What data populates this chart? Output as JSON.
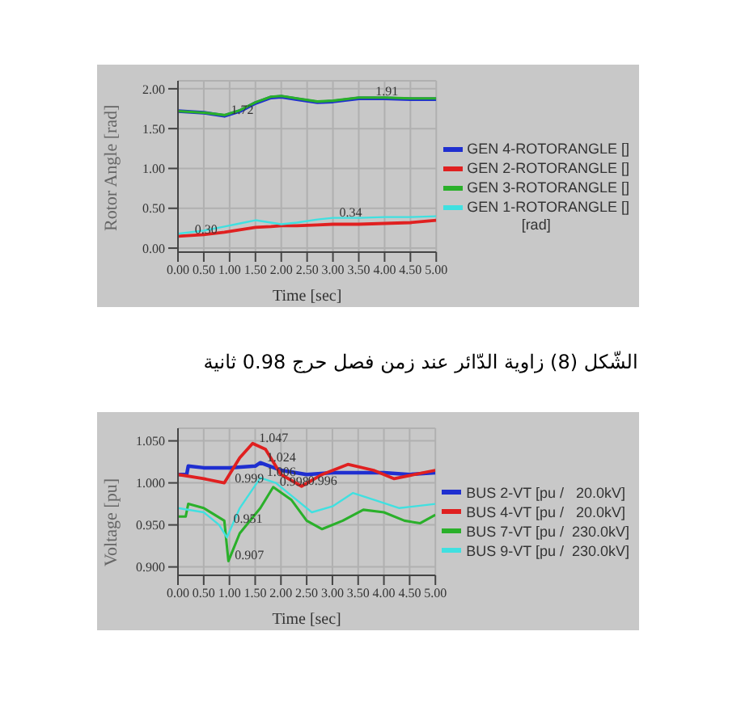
{
  "chart_data": [
    {
      "type": "line",
      "xlabel": "Time [sec]",
      "ylabel": "Rotor Angle [rad]",
      "legend_title": "[rad]",
      "legend": "right",
      "grid": true,
      "xlim": [
        0,
        5
      ],
      "xticks": [
        {
          "value": 0,
          "label": "0.00"
        },
        {
          "value": 0.5,
          "label": "0.50"
        },
        {
          "value": 1,
          "label": "1.00"
        },
        {
          "value": 1.5,
          "label": "1.50"
        },
        {
          "value": 2,
          "label": "2.00"
        },
        {
          "value": 2.5,
          "label": "2.50"
        },
        {
          "value": 3,
          "label": "3.00"
        },
        {
          "value": 3.5,
          "label": "3.50"
        },
        {
          "value": 4,
          "label": "4.00"
        },
        {
          "value": 4.5,
          "label": "4.50"
        },
        {
          "value": 5,
          "label": "5.00"
        }
      ],
      "ylim": [
        -0.05,
        2.1
      ],
      "yticks": [
        {
          "value": 0,
          "label": "0.00"
        },
        {
          "value": 0.5,
          "label": "0.50"
        },
        {
          "value": 1,
          "label": "1.00"
        },
        {
          "value": 1.5,
          "label": "1.50"
        },
        {
          "value": 2,
          "label": "2.00"
        }
      ],
      "x": [
        0,
        0.5,
        0.9,
        1.2,
        1.5,
        1.8,
        2.0,
        2.3,
        2.7,
        3.0,
        3.5,
        4.0,
        4.5,
        5.0
      ],
      "series": [
        {
          "name": "GEN 4-ROTORANGLE []",
          "color": "#1f2fd0",
          "values": [
            1.72,
            1.7,
            1.66,
            1.72,
            1.82,
            1.89,
            1.9,
            1.87,
            1.83,
            1.84,
            1.88,
            1.88,
            1.87,
            1.87
          ]
        },
        {
          "name": "GEN 2-ROTORANGLE []",
          "color": "#e02020",
          "values": [
            0.15,
            0.17,
            0.2,
            0.23,
            0.26,
            0.27,
            0.28,
            0.28,
            0.29,
            0.3,
            0.3,
            0.31,
            0.32,
            0.35
          ]
        },
        {
          "name": "GEN 3-ROTORANGLE []",
          "color": "#2ab02a",
          "values": [
            1.72,
            1.7,
            1.67,
            1.73,
            1.83,
            1.9,
            1.91,
            1.88,
            1.84,
            1.85,
            1.89,
            1.89,
            1.88,
            1.88
          ]
        },
        {
          "name": "GEN 1-ROTORANGLE []",
          "color": "#40e0e0",
          "values": [
            0.18,
            0.22,
            0.27,
            0.31,
            0.35,
            0.32,
            0.3,
            0.32,
            0.36,
            0.38,
            0.38,
            0.39,
            0.39,
            0.4
          ]
        }
      ],
      "annotations": [
        {
          "text": "1.72",
          "x": 0.9,
          "y": 1.66
        },
        {
          "text": "1.91",
          "x": 3.7,
          "y": 1.9
        },
        {
          "text": "0.30",
          "x": 0.2,
          "y": 0.16
        },
        {
          "text": "0.34",
          "x": 3.0,
          "y": 0.38
        },
        "الشّكل (8)  زاوية الدّائر عند زمن فصل حرج 0.98 ثانية"
      ]
    },
    {
      "type": "line",
      "xlabel": "Time [sec]",
      "ylabel": "Voltage [pu]",
      "legend": "right",
      "grid": true,
      "xlim": [
        0,
        5
      ],
      "xticks": [
        {
          "value": 0,
          "label": "0.00"
        },
        {
          "value": 0.5,
          "label": "0.50"
        },
        {
          "value": 1,
          "label": "1.00"
        },
        {
          "value": 1.5,
          "label": "1.50"
        },
        {
          "value": 2,
          "label": "2.00"
        },
        {
          "value": 2.5,
          "label": "2.50"
        },
        {
          "value": 3,
          "label": "3.00"
        },
        {
          "value": 3.5,
          "label": "3.50"
        },
        {
          "value": 4,
          "label": "4.00"
        },
        {
          "value": 4.5,
          "label": "4.50"
        },
        {
          "value": 5,
          "label": "5.00"
        }
      ],
      "ylim": [
        0.89,
        1.065
      ],
      "yticks": [
        {
          "value": 0.9,
          "label": "0.900"
        },
        {
          "value": 0.95,
          "label": "0.950"
        },
        {
          "value": 1,
          "label": "1.000"
        },
        {
          "value": 1.05,
          "label": "1.050"
        }
      ],
      "series": [
        {
          "name": "BUS 2-VT [pu /   20.0kV]",
          "color": "#1f2fd0",
          "x": [
            0,
            0.17,
            0.2,
            0.5,
            1.0,
            1.5,
            1.6,
            2.0,
            2.5,
            3.0,
            3.5,
            4.0,
            4.5,
            5.0
          ],
          "values": [
            1.01,
            1.01,
            1.02,
            1.018,
            1.018,
            1.02,
            1.024,
            1.015,
            1.01,
            1.012,
            1.012,
            1.012,
            1.01,
            1.012
          ]
        },
        {
          "name": "BUS 4-VT [pu /   20.0kV]",
          "color": "#e02020",
          "x": [
            0,
            0.5,
            0.9,
            1.2,
            1.45,
            1.7,
            2.0,
            2.4,
            2.8,
            3.3,
            3.8,
            4.2,
            4.6,
            5.0
          ],
          "values": [
            1.01,
            1.005,
            1.0,
            1.03,
            1.047,
            1.04,
            1.01,
            0.996,
            1.01,
            1.022,
            1.015,
            1.005,
            1.01,
            1.015
          ]
        },
        {
          "name": "BUS 7-VT [pu /  230.0kV]",
          "color": "#2ab02a",
          "x": [
            0,
            0.15,
            0.2,
            0.5,
            0.9,
            0.98,
            1.2,
            1.6,
            1.85,
            2.2,
            2.5,
            2.8,
            3.2,
            3.6,
            4.0,
            4.4,
            4.7,
            5.0
          ],
          "values": [
            0.96,
            0.96,
            0.975,
            0.97,
            0.955,
            0.907,
            0.94,
            0.97,
            0.995,
            0.98,
            0.955,
            0.945,
            0.955,
            0.968,
            0.965,
            0.955,
            0.952,
            0.962
          ]
        },
        {
          "name": "BUS 9-VT [pu /  230.0kV]",
          "color": "#40e0e0",
          "x": [
            0,
            0.5,
            0.8,
            0.95,
            1.2,
            1.6,
            1.9,
            2.3,
            2.6,
            3.0,
            3.4,
            3.8,
            4.3,
            5.0
          ],
          "values": [
            0.97,
            0.965,
            0.95,
            0.935,
            0.97,
            1.006,
            1.0,
            0.98,
            0.965,
            0.972,
            0.988,
            0.98,
            0.97,
            0.975
          ]
        }
      ],
      "annotations": [
        {
          "text": "1.047",
          "x": 1.45,
          "y": 1.047
        },
        {
          "text": "1.024",
          "x": 1.6,
          "y": 1.024
        },
        {
          "text": "0.999",
          "x": 0.98,
          "y": 0.999
        },
        {
          "text": "1.006",
          "x": 1.6,
          "y": 1.006
        },
        {
          "text": "0.998",
          "x": 1.85,
          "y": 0.995
        },
        {
          "text": "0.996",
          "x": 2.4,
          "y": 0.996
        },
        {
          "text": "0.951",
          "x": 0.95,
          "y": 0.951
        },
        {
          "text": "0.907",
          "x": 0.98,
          "y": 0.907
        }
      ]
    }
  ]
}
